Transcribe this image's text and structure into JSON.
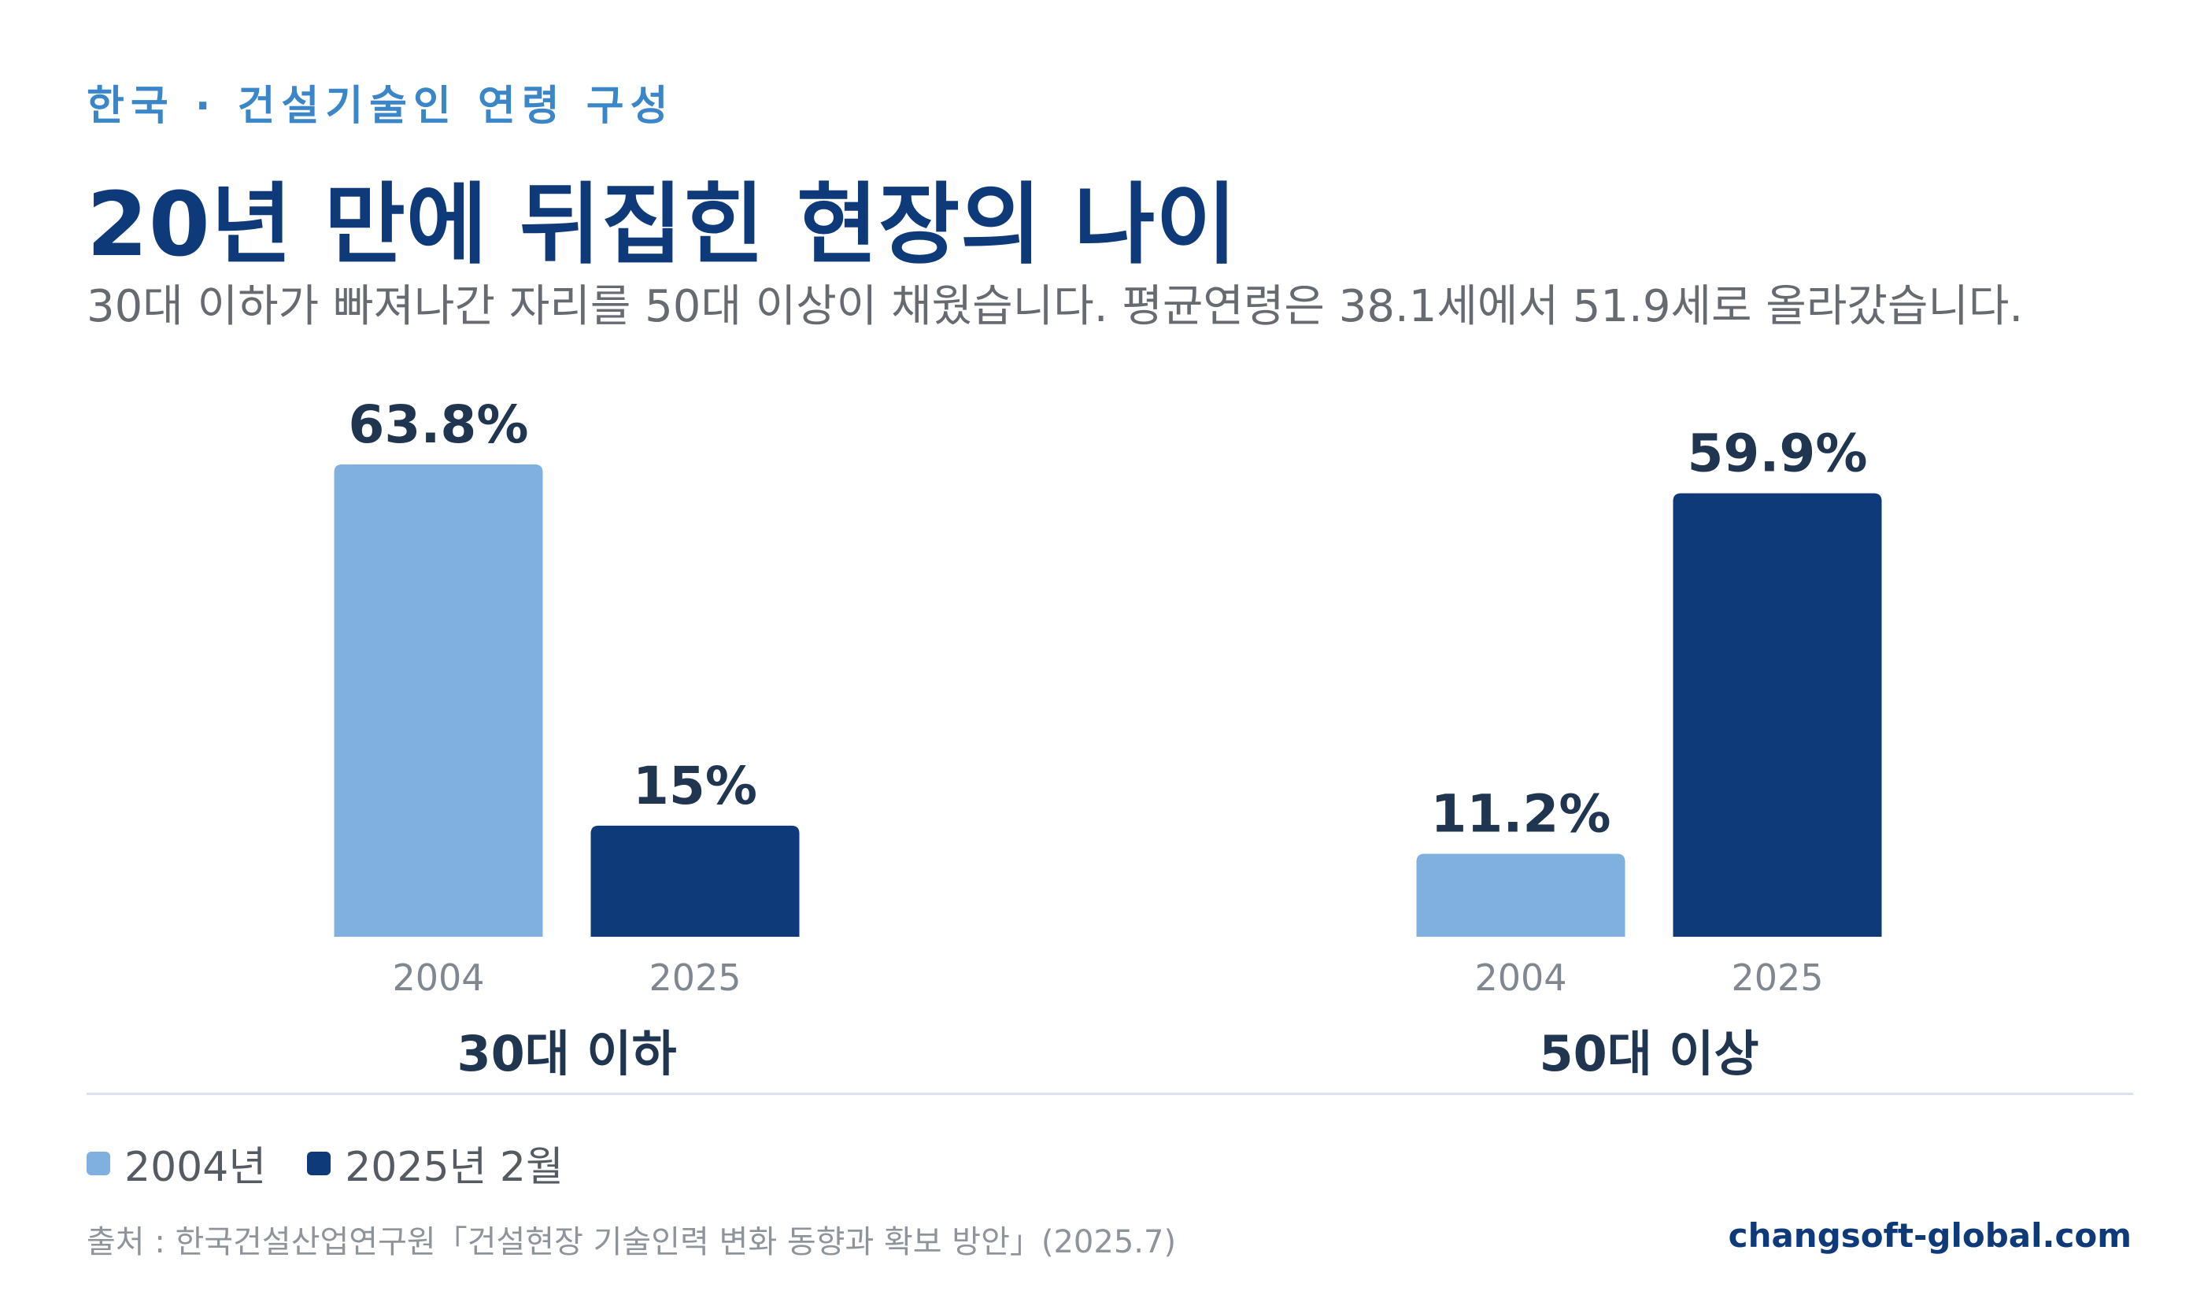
{
  "header": {
    "kicker": "한국 · 건설기술인 연령 구성",
    "title": "20년 만에 뒤집힌 현장의 나이",
    "subtitle": "30대 이하가 빠져나간 자리를 50대 이상이 채웠습니다. 평균연령은 38.1세에서 51.9세로 올라갔습니다."
  },
  "chart_data": {
    "type": "bar",
    "categories": [
      "30대 이하",
      "50대 이상"
    ],
    "x_ticks": [
      "2004",
      "2025"
    ],
    "series": [
      {
        "name": "2004년",
        "color": "#80b0df",
        "values": [
          63.8,
          11.2
        ],
        "labels": [
          "63.8%",
          "11.2%"
        ]
      },
      {
        "name": "2025년 2월",
        "color": "#0e3a7a",
        "values": [
          15,
          59.9
        ],
        "labels": [
          "15%",
          "59.9%"
        ]
      }
    ],
    "ylim": [
      0,
      63.8
    ],
    "grid": false,
    "legend": "bottom-left"
  },
  "footer": {
    "source": "출처 : 한국건설산업연구원「건설현장 기술인력 변화 동향과 확보 방안」(2025.7)",
    "site": "changsoft-global.com"
  }
}
